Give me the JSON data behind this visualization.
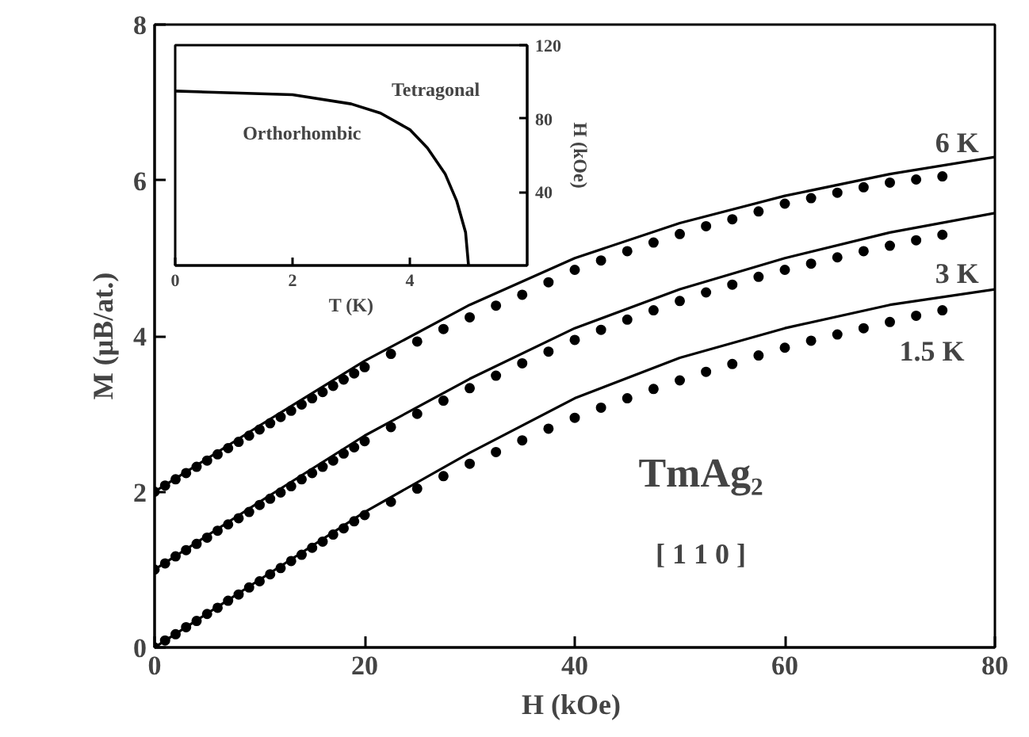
{
  "chart_data": [
    {
      "type": "line",
      "xlabel": "H  (kOe)",
      "ylabel": "M (μB/at.)",
      "xlim": [
        0,
        80
      ],
      "ylim": [
        0,
        8
      ],
      "xticks": [
        0,
        20,
        40,
        60,
        80
      ],
      "yticks": [
        0,
        2,
        4,
        6,
        8
      ],
      "grid": false,
      "series": [
        {
          "type": "line",
          "color": "#000000",
          "x": [
            0,
            10,
            20,
            30,
            40,
            50,
            60,
            70,
            80
          ],
          "values": [
            0,
            0.87,
            1.74,
            2.5,
            3.2,
            3.72,
            4.1,
            4.4,
            4.6
          ]
        },
        {
          "type": "line",
          "color": "#000000",
          "x": [
            0,
            10,
            20,
            30,
            40,
            50,
            60,
            70,
            80
          ],
          "values": [
            1,
            1.87,
            2.72,
            3.45,
            4.1,
            4.6,
            5.0,
            5.33,
            5.58
          ]
        },
        {
          "type": "line",
          "color": "#000000",
          "x": [
            0,
            10,
            20,
            30,
            40,
            50,
            60,
            70,
            80
          ],
          "values": [
            2,
            2.85,
            3.68,
            4.4,
            5.0,
            5.45,
            5.8,
            6.08,
            6.3
          ]
        },
        {
          "type": "scatter",
          "marker": "circle",
          "color": "#000000",
          "x": [
            0,
            1,
            2,
            3,
            4,
            5,
            6,
            7,
            8,
            9,
            10,
            11,
            12,
            13,
            14,
            15,
            16,
            17,
            18,
            19,
            20,
            22.5,
            25,
            27.5,
            30,
            32.5,
            35,
            37.5,
            40,
            42.5,
            45,
            47.5,
            50,
            52.5,
            55,
            57.5,
            60,
            62.5,
            65,
            67.5,
            70,
            72.5,
            75
          ],
          "values": [
            0,
            0.09,
            0.17,
            0.26,
            0.34,
            0.43,
            0.51,
            0.6,
            0.68,
            0.77,
            0.85,
            0.94,
            1.02,
            1.11,
            1.19,
            1.28,
            1.36,
            1.45,
            1.53,
            1.62,
            1.7,
            1.87,
            2.04,
            2.2,
            2.36,
            2.51,
            2.66,
            2.81,
            2.95,
            3.08,
            3.2,
            3.32,
            3.43,
            3.54,
            3.64,
            3.75,
            3.85,
            3.94,
            4.02,
            4.1,
            4.18,
            4.26,
            4.33
          ]
        },
        {
          "type": "scatter",
          "marker": "circle",
          "color": "#000000",
          "x": [
            0,
            1,
            2,
            3,
            4,
            5,
            6,
            7,
            8,
            9,
            10,
            11,
            12,
            13,
            14,
            15,
            16,
            17,
            18,
            19,
            20,
            22.5,
            25,
            27.5,
            30,
            32.5,
            35,
            37.5,
            40,
            42.5,
            45,
            47.5,
            50,
            52.5,
            55,
            57.5,
            60,
            62.5,
            65,
            67.5,
            70,
            72.5,
            75
          ],
          "values": [
            1,
            1.08,
            1.17,
            1.25,
            1.33,
            1.41,
            1.5,
            1.58,
            1.66,
            1.74,
            1.83,
            1.91,
            1.99,
            2.07,
            2.16,
            2.24,
            2.32,
            2.4,
            2.49,
            2.57,
            2.65,
            2.83,
            3.0,
            3.17,
            3.33,
            3.49,
            3.65,
            3.8,
            3.95,
            4.08,
            4.21,
            4.33,
            4.45,
            4.56,
            4.66,
            4.76,
            4.85,
            4.93,
            5.01,
            5.09,
            5.16,
            5.23,
            5.3
          ]
        },
        {
          "type": "scatter",
          "marker": "circle",
          "color": "#000000",
          "x": [
            0,
            1,
            2,
            3,
            4,
            5,
            6,
            7,
            8,
            9,
            10,
            11,
            12,
            13,
            14,
            15,
            16,
            17,
            18,
            19,
            20,
            22.5,
            25,
            27.5,
            30,
            32.5,
            35,
            37.5,
            40,
            42.5,
            45,
            47.5,
            50,
            52.5,
            55,
            57.5,
            60,
            62.5,
            65,
            67.5,
            70,
            72.5,
            75
          ],
          "values": [
            2,
            2.08,
            2.16,
            2.24,
            2.32,
            2.4,
            2.48,
            2.56,
            2.64,
            2.72,
            2.8,
            2.88,
            2.96,
            3.04,
            3.12,
            3.2,
            3.28,
            3.36,
            3.44,
            3.52,
            3.6,
            3.77,
            3.93,
            4.09,
            4.24,
            4.39,
            4.53,
            4.69,
            4.85,
            4.97,
            5.09,
            5.2,
            5.31,
            5.41,
            5.5,
            5.6,
            5.7,
            5.77,
            5.84,
            5.91,
            5.97,
            6.01,
            6.05
          ]
        }
      ],
      "annotations": [
        "6 K",
        "3 K",
        "1.5 K",
        "TmAg₂",
        "[ 1 1 0 ]"
      ]
    },
    {
      "type": "line",
      "xlabel": "T (K)",
      "ylabel": "H (kOe)",
      "xlim": [
        0,
        6
      ],
      "ylim": [
        0,
        120
      ],
      "xticks": [
        0,
        2,
        4
      ],
      "yticks": [
        40,
        80,
        120
      ],
      "grid": false,
      "series": [
        {
          "color": "#000000",
          "x": [
            0,
            1,
            2,
            3,
            3.5,
            4,
            4.3,
            4.6,
            4.8,
            4.95,
            5.0
          ],
          "values": [
            95,
            94,
            93,
            88,
            83,
            74,
            64,
            50,
            35,
            18,
            0
          ]
        }
      ],
      "annotations": [
        "Tetragonal",
        "Orthorhombic"
      ]
    }
  ]
}
